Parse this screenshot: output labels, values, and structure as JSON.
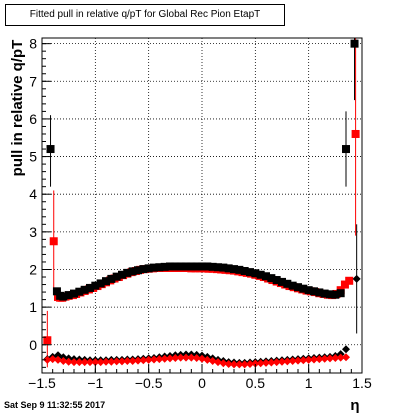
{
  "chart_data": {
    "type": "scatter",
    "title": "Fitted pull in relative q/pT for Global Rec Pion EtapT",
    "xlabel": "η",
    "ylabel": "pull in relative q/pT",
    "xlim": [
      -1.5,
      1.5
    ],
    "ylim": [
      -0.75,
      8.15
    ],
    "x_ticks": [
      "−1.5",
      "−1",
      "−0.5",
      "0",
      "0.5",
      "1",
      "1.5"
    ],
    "y_ticks": [
      "0",
      "1",
      "2",
      "3",
      "4",
      "5",
      "6",
      "7",
      "8"
    ],
    "grid": true,
    "series": [
      {
        "name": "",
        "marker": "square",
        "color": "#ff0000",
        "points": [
          [
            -1.45,
            0.12
          ],
          [
            -1.39,
            2.75
          ],
          [
            -1.35,
            1.27
          ],
          [
            -1.33,
            1.25
          ],
          [
            -1.31,
            1.25
          ],
          [
            -1.28,
            1.28
          ],
          [
            -1.25,
            1.3
          ],
          [
            -1.21,
            1.32
          ],
          [
            -1.18,
            1.35
          ],
          [
            -1.14,
            1.39
          ],
          [
            -1.1,
            1.43
          ],
          [
            -1.06,
            1.47
          ],
          [
            -1.02,
            1.51
          ],
          [
            -0.98,
            1.56
          ],
          [
            -0.94,
            1.61
          ],
          [
            -0.9,
            1.66
          ],
          [
            -0.86,
            1.71
          ],
          [
            -0.82,
            1.76
          ],
          [
            -0.78,
            1.8
          ],
          [
            -0.74,
            1.85
          ],
          [
            -0.7,
            1.89
          ],
          [
            -0.66,
            1.93
          ],
          [
            -0.62,
            1.96
          ],
          [
            -0.58,
            1.99
          ],
          [
            -0.54,
            2.01
          ],
          [
            -0.5,
            2.02
          ],
          [
            -0.46,
            2.03
          ],
          [
            -0.42,
            2.04
          ],
          [
            -0.38,
            2.04
          ],
          [
            -0.34,
            2.04
          ],
          [
            -0.3,
            2.04
          ],
          [
            -0.26,
            2.04
          ],
          [
            -0.22,
            2.04
          ],
          [
            -0.18,
            2.04
          ],
          [
            -0.14,
            2.04
          ],
          [
            -0.1,
            2.03
          ],
          [
            -0.06,
            2.03
          ],
          [
            -0.02,
            2.03
          ],
          [
            0.02,
            2.03
          ],
          [
            0.06,
            2.02
          ],
          [
            0.1,
            2.02
          ],
          [
            0.14,
            2.01
          ],
          [
            0.18,
            2.0
          ],
          [
            0.22,
            1.99
          ],
          [
            0.26,
            1.98
          ],
          [
            0.3,
            1.97
          ],
          [
            0.34,
            1.95
          ],
          [
            0.38,
            1.93
          ],
          [
            0.42,
            1.91
          ],
          [
            0.46,
            1.89
          ],
          [
            0.5,
            1.86
          ],
          [
            0.54,
            1.83
          ],
          [
            0.58,
            1.8
          ],
          [
            0.62,
            1.76
          ],
          [
            0.66,
            1.72
          ],
          [
            0.7,
            1.68
          ],
          [
            0.74,
            1.64
          ],
          [
            0.78,
            1.6
          ],
          [
            0.82,
            1.56
          ],
          [
            0.86,
            1.53
          ],
          [
            0.9,
            1.5
          ],
          [
            0.94,
            1.47
          ],
          [
            0.98,
            1.44
          ],
          [
            1.02,
            1.42
          ],
          [
            1.06,
            1.4
          ],
          [
            1.1,
            1.37
          ],
          [
            1.14,
            1.35
          ],
          [
            1.18,
            1.33
          ],
          [
            1.22,
            1.32
          ],
          [
            1.26,
            1.35
          ],
          [
            1.3,
            1.45
          ],
          [
            1.34,
            1.6
          ],
          [
            1.38,
            1.7
          ],
          [
            1.44,
            5.6
          ]
        ]
      },
      {
        "name": "",
        "marker": "square",
        "color": "#000000",
        "points": [
          [
            -1.42,
            5.2
          ],
          [
            -1.36,
            1.42
          ],
          [
            -1.33,
            1.3
          ],
          [
            -1.3,
            1.28
          ],
          [
            -1.25,
            1.32
          ],
          [
            -1.2,
            1.36
          ],
          [
            -1.15,
            1.41
          ],
          [
            -1.1,
            1.46
          ],
          [
            -1.05,
            1.51
          ],
          [
            -1.0,
            1.57
          ],
          [
            -0.95,
            1.63
          ],
          [
            -0.9,
            1.69
          ],
          [
            -0.85,
            1.75
          ],
          [
            -0.8,
            1.81
          ],
          [
            -0.75,
            1.86
          ],
          [
            -0.7,
            1.91
          ],
          [
            -0.65,
            1.95
          ],
          [
            -0.6,
            1.98
          ],
          [
            -0.55,
            2.01
          ],
          [
            -0.5,
            2.03
          ],
          [
            -0.45,
            2.05
          ],
          [
            -0.4,
            2.06
          ],
          [
            -0.35,
            2.07
          ],
          [
            -0.3,
            2.08
          ],
          [
            -0.25,
            2.08
          ],
          [
            -0.2,
            2.08
          ],
          [
            -0.15,
            2.08
          ],
          [
            -0.1,
            2.08
          ],
          [
            -0.05,
            2.08
          ],
          [
            0.0,
            2.08
          ],
          [
            0.05,
            2.08
          ],
          [
            0.1,
            2.07
          ],
          [
            0.15,
            2.06
          ],
          [
            0.2,
            2.05
          ],
          [
            0.25,
            2.03
          ],
          [
            0.3,
            2.01
          ],
          [
            0.35,
            1.99
          ],
          [
            0.4,
            1.96
          ],
          [
            0.45,
            1.93
          ],
          [
            0.5,
            1.9
          ],
          [
            0.55,
            1.86
          ],
          [
            0.6,
            1.82
          ],
          [
            0.65,
            1.77
          ],
          [
            0.7,
            1.72
          ],
          [
            0.75,
            1.67
          ],
          [
            0.8,
            1.62
          ],
          [
            0.85,
            1.57
          ],
          [
            0.9,
            1.53
          ],
          [
            0.95,
            1.49
          ],
          [
            1.0,
            1.45
          ],
          [
            1.05,
            1.42
          ],
          [
            1.1,
            1.39
          ],
          [
            1.15,
            1.36
          ],
          [
            1.2,
            1.34
          ],
          [
            1.25,
            1.33
          ],
          [
            1.3,
            1.37
          ],
          [
            1.35,
            5.2
          ],
          [
            1.43,
            8.0
          ]
        ]
      },
      {
        "name": "",
        "marker": "diamond",
        "color": "#000000",
        "points": [
          [
            -1.45,
            -0.38
          ],
          [
            -1.4,
            -0.32
          ],
          [
            -1.35,
            -0.28
          ],
          [
            -1.3,
            -0.33
          ],
          [
            -1.25,
            -0.36
          ],
          [
            -1.2,
            -0.38
          ],
          [
            -1.15,
            -0.39
          ],
          [
            -1.1,
            -0.4
          ],
          [
            -1.05,
            -0.41
          ],
          [
            -1.0,
            -0.41
          ],
          [
            -0.95,
            -0.41
          ],
          [
            -0.9,
            -0.41
          ],
          [
            -0.85,
            -0.4
          ],
          [
            -0.8,
            -0.4
          ],
          [
            -0.75,
            -0.4
          ],
          [
            -0.7,
            -0.39
          ],
          [
            -0.65,
            -0.39
          ],
          [
            -0.6,
            -0.38
          ],
          [
            -0.55,
            -0.37
          ],
          [
            -0.5,
            -0.36
          ],
          [
            -0.45,
            -0.35
          ],
          [
            -0.4,
            -0.33
          ],
          [
            -0.35,
            -0.31
          ],
          [
            -0.3,
            -0.3
          ],
          [
            -0.25,
            -0.28
          ],
          [
            -0.2,
            -0.27
          ],
          [
            -0.15,
            -0.26
          ],
          [
            -0.1,
            -0.26
          ],
          [
            -0.05,
            -0.27
          ],
          [
            0.0,
            -0.29
          ],
          [
            0.05,
            -0.32
          ],
          [
            0.1,
            -0.36
          ],
          [
            0.15,
            -0.4
          ],
          [
            0.2,
            -0.43
          ],
          [
            0.25,
            -0.46
          ],
          [
            0.3,
            -0.47
          ],
          [
            0.35,
            -0.48
          ],
          [
            0.4,
            -0.48
          ],
          [
            0.45,
            -0.47
          ],
          [
            0.5,
            -0.46
          ],
          [
            0.55,
            -0.45
          ],
          [
            0.6,
            -0.44
          ],
          [
            0.65,
            -0.43
          ],
          [
            0.7,
            -0.42
          ],
          [
            0.75,
            -0.41
          ],
          [
            0.8,
            -0.4
          ],
          [
            0.85,
            -0.39
          ],
          [
            0.9,
            -0.38
          ],
          [
            0.95,
            -0.37
          ],
          [
            1.0,
            -0.36
          ],
          [
            1.05,
            -0.35
          ],
          [
            1.1,
            -0.34
          ],
          [
            1.15,
            -0.33
          ],
          [
            1.2,
            -0.32
          ],
          [
            1.25,
            -0.3
          ],
          [
            1.3,
            -0.25
          ],
          [
            1.35,
            -0.12
          ],
          [
            1.45,
            1.75
          ]
        ]
      },
      {
        "name": "",
        "marker": "diamond",
        "color": "#ff0000",
        "points": [
          [
            -1.45,
            -0.4
          ],
          [
            -1.4,
            -0.38
          ],
          [
            -1.35,
            -0.4
          ],
          [
            -1.3,
            -0.43
          ],
          [
            -1.25,
            -0.45
          ],
          [
            -1.2,
            -0.46
          ],
          [
            -1.15,
            -0.46
          ],
          [
            -1.1,
            -0.46
          ],
          [
            -1.05,
            -0.46
          ],
          [
            -1.0,
            -0.46
          ],
          [
            -0.95,
            -0.46
          ],
          [
            -0.9,
            -0.45
          ],
          [
            -0.85,
            -0.45
          ],
          [
            -0.8,
            -0.44
          ],
          [
            -0.75,
            -0.44
          ],
          [
            -0.7,
            -0.43
          ],
          [
            -0.65,
            -0.43
          ],
          [
            -0.6,
            -0.42
          ],
          [
            -0.55,
            -0.41
          ],
          [
            -0.5,
            -0.4
          ],
          [
            -0.45,
            -0.39
          ],
          [
            -0.4,
            -0.38
          ],
          [
            -0.35,
            -0.37
          ],
          [
            -0.3,
            -0.36
          ],
          [
            -0.25,
            -0.35
          ],
          [
            -0.2,
            -0.34
          ],
          [
            -0.15,
            -0.34
          ],
          [
            -0.1,
            -0.34
          ],
          [
            -0.05,
            -0.35
          ],
          [
            0.0,
            -0.37
          ],
          [
            0.05,
            -0.4
          ],
          [
            0.1,
            -0.43
          ],
          [
            0.15,
            -0.46
          ],
          [
            0.2,
            -0.49
          ],
          [
            0.25,
            -0.51
          ],
          [
            0.3,
            -0.52
          ],
          [
            0.35,
            -0.52
          ],
          [
            0.4,
            -0.52
          ],
          [
            0.45,
            -0.51
          ],
          [
            0.5,
            -0.5
          ],
          [
            0.55,
            -0.49
          ],
          [
            0.6,
            -0.48
          ],
          [
            0.65,
            -0.47
          ],
          [
            0.7,
            -0.46
          ],
          [
            0.75,
            -0.45
          ],
          [
            0.8,
            -0.44
          ],
          [
            0.85,
            -0.43
          ],
          [
            0.9,
            -0.42
          ],
          [
            0.95,
            -0.41
          ],
          [
            1.0,
            -0.4
          ],
          [
            1.05,
            -0.39
          ],
          [
            1.1,
            -0.38
          ],
          [
            1.15,
            -0.37
          ],
          [
            1.2,
            -0.36
          ],
          [
            1.25,
            -0.35
          ],
          [
            1.3,
            -0.34
          ],
          [
            1.35,
            -0.33
          ]
        ]
      }
    ]
  },
  "footer": {
    "timestamp": "Sat Sep  9 11:32:55 2017"
  }
}
